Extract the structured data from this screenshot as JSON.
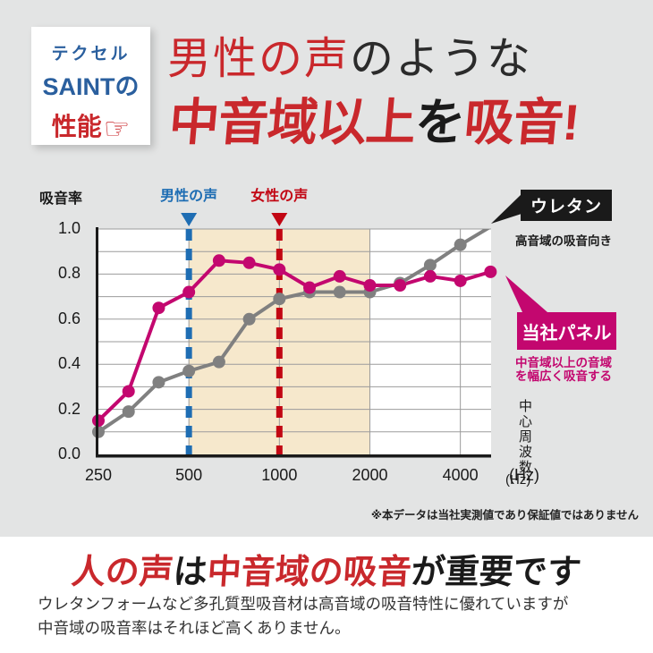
{
  "badge": {
    "line1": "テクセル",
    "line2": "SAINTの",
    "line3": "性能",
    "hand_icon": "☞"
  },
  "title": {
    "line1_red": "男性の声",
    "line1_black": "のような",
    "line2_red1": "中音域以上",
    "line2_black": "を",
    "line2_red2": "吸音!"
  },
  "chart_data": {
    "type": "line",
    "ylabel": "吸音率",
    "x_axis_label_vertical": "中心周波数",
    "x_axis_unit": "(Hz)",
    "x_ticks": [
      "250",
      "500",
      "1000",
      "2000",
      "4000"
    ],
    "x_tick_indices": [
      0,
      3,
      6,
      9,
      12
    ],
    "y_ticks": [
      "1.0",
      "0.8",
      "0.6",
      "0.4",
      "0.2",
      "0.0"
    ],
    "ylim": [
      0,
      1
    ],
    "grid": true,
    "frequencies": [
      250,
      315,
      400,
      500,
      630,
      800,
      1000,
      1250,
      1600,
      2000,
      2500,
      3150,
      4000,
      5000
    ],
    "series": [
      {
        "name": "ウレタン",
        "color": "#808080",
        "values": [
          0.1,
          0.19,
          0.32,
          0.37,
          0.41,
          0.6,
          0.69,
          0.72,
          0.72,
          0.72,
          0.76,
          0.84,
          0.93,
          1.01
        ],
        "clip_last_point": true
      },
      {
        "name": "当社パネル",
        "color": "#c3076f",
        "values": [
          0.15,
          0.28,
          0.65,
          0.72,
          0.86,
          0.85,
          0.82,
          0.74,
          0.79,
          0.75,
          0.75,
          0.79,
          0.77,
          0.81
        ],
        "clip_last_point": false
      }
    ],
    "markers": [
      {
        "label": "男性の声",
        "freq": 500,
        "index": 3,
        "color": "#1e6db3"
      },
      {
        "label": "女性の声",
        "freq": 1000,
        "index": 6,
        "color": "#c20613"
      }
    ],
    "shaded_region": {
      "from": 500,
      "to": 2000,
      "from_index": 3,
      "to_index": 9,
      "color": "#f6e8cc"
    },
    "annotations": {
      "urethane_label": "ウレタン",
      "urethane_note": "高音域の吸音向き",
      "panel_label": "当社パネル",
      "panel_note_line1": "中音域以上の音域",
      "panel_note_line2": "を幅広く吸音する"
    },
    "footnote": "※本データは当社実測値であり保証値ではありません"
  },
  "bottom": {
    "heading_red1": "人の声",
    "heading_black1": "は",
    "heading_red2": "中音域の吸音",
    "heading_black2": "が重要です",
    "body_line1": "ウレタンフォームなど多孔質型吸音材は高音域の吸音特性に優れていますが",
    "body_line2": "中音域の吸音率はそれほど高くありません。"
  },
  "colors": {
    "background_top": "#e3e4e4",
    "accent_red": "#c9282c",
    "badge_blue": "#2a5f9e",
    "chart_blue": "#1e6db3",
    "chart_red": "#c20613",
    "magenta": "#c3076f",
    "gray_line": "#808080",
    "shaded_beige": "#f6e8cc",
    "ink": "#1a1a1a"
  }
}
